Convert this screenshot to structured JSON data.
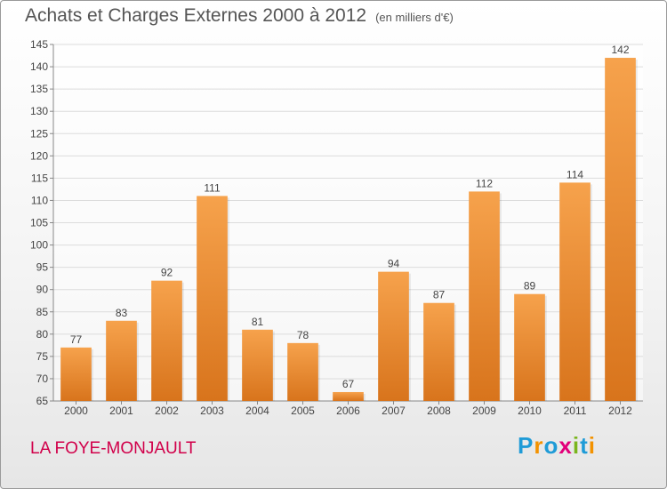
{
  "header": {
    "title": "Achats et Charges Externes 2000 à 2012",
    "subtitle": "(en milliers d'€)"
  },
  "footer": {
    "commune": "LA FOYE-MONJAULT",
    "brand": "Proxiti"
  },
  "colors": {
    "bar_top": "#f6a24c",
    "bar_bottom": "#d8741c",
    "commune": "#d1004a",
    "axis": "#888888",
    "grid": "#dcdcdc",
    "label": "#444444"
  },
  "chart_data": {
    "type": "bar",
    "categories": [
      "2000",
      "2001",
      "2002",
      "2003",
      "2004",
      "2005",
      "2006",
      "2007",
      "2008",
      "2009",
      "2010",
      "2011",
      "2012"
    ],
    "values": [
      77,
      83,
      92,
      111,
      81,
      78,
      67,
      94,
      87,
      112,
      89,
      114,
      142
    ],
    "ylim": [
      65,
      145
    ],
    "yticks": [
      65,
      70,
      75,
      80,
      85,
      90,
      95,
      100,
      105,
      110,
      115,
      120,
      125,
      130,
      135,
      140,
      145
    ],
    "grid": true,
    "data_labels": true
  }
}
